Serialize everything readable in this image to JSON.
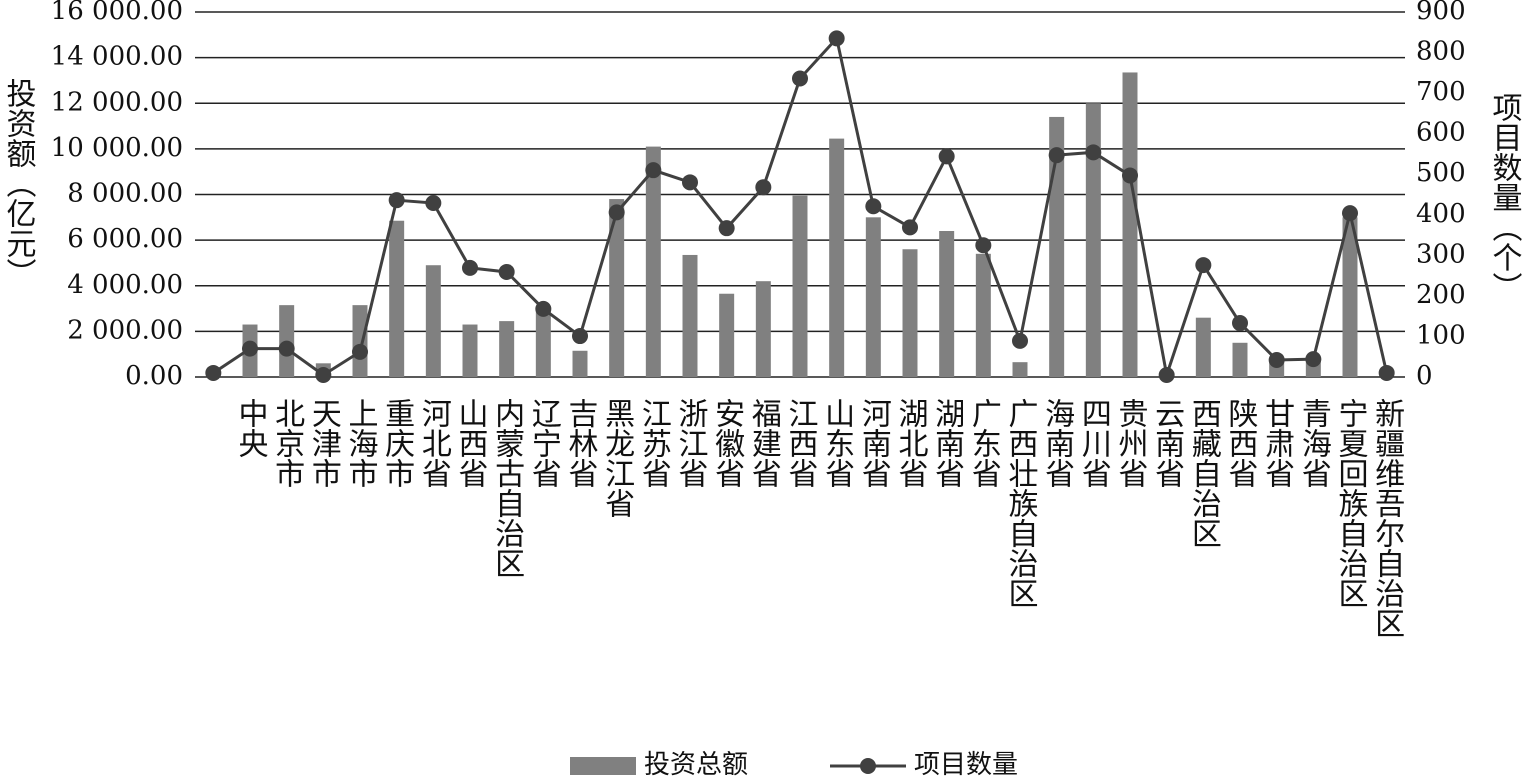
{
  "chart_data": {
    "type": "bar-line",
    "categories": [
      null,
      "中央",
      "北京市",
      "天津市",
      "上海市",
      "重庆市",
      "河北省",
      "山西省",
      "内蒙古自治区",
      "辽宁省",
      "吉林省",
      "黑龙江省",
      "江苏省",
      "浙江省",
      "安徽省",
      "福建省",
      "江西省",
      "山东省",
      "河南省",
      "湖北省",
      "湖南省",
      "广东省",
      "广西壮族自治区",
      "海南省",
      "四川省",
      "贵州省",
      "云南省",
      "西藏自治区",
      "陕西省",
      "甘肃省",
      "青海省",
      "宁夏回族自治区",
      "新疆维吾尔自治区"
    ],
    "series": [
      {
        "name": "投资总额",
        "color": "#808080",
        "kind": "bar",
        "values": [
          null,
          2300,
          3150,
          600,
          3150,
          6850,
          4900,
          2300,
          2450,
          2950,
          1150,
          7800,
          10100,
          5350,
          3650,
          4200,
          7950,
          10450,
          7000,
          5600,
          6400,
          5400,
          650,
          11400,
          12000,
          13350,
          0,
          2600,
          1500,
          700,
          800,
          7000,
          0
        ]
      },
      {
        "name": "项目数量",
        "color": "#404040",
        "kind": "line",
        "axis": "y2",
        "values": [
          10,
          70,
          70,
          5,
          62,
          436,
          429,
          269,
          259,
          168,
          101,
          406,
          510,
          480,
          367,
          468,
          736,
          835,
          421,
          369,
          544,
          325,
          89,
          547,
          554,
          497,
          5,
          276,
          133,
          42,
          44,
          404,
          10
        ]
      }
    ],
    "y_label": "投资额（亿元）",
    "y2_label": "项目数量（个）",
    "ylim": [
      0,
      16000
    ],
    "yticks": [
      {
        "value": 0,
        "label": "0.00"
      },
      {
        "value": 2000,
        "label": "2 000.00"
      },
      {
        "value": 4000,
        "label": "4 000.00"
      },
      {
        "value": 6000,
        "label": "6 000.00"
      },
      {
        "value": 8000,
        "label": "8 000.00"
      },
      {
        "value": 10000,
        "label": "10 000.00"
      },
      {
        "value": 12000,
        "label": "12 000.00"
      },
      {
        "value": 14000,
        "label": "14 000.00"
      },
      {
        "value": 16000,
        "label": "16 000.00"
      }
    ],
    "y2lim": [
      0,
      900
    ],
    "y2ticks": [
      0,
      100,
      200,
      300,
      400,
      500,
      600,
      700,
      800,
      900
    ],
    "grid": true
  }
}
